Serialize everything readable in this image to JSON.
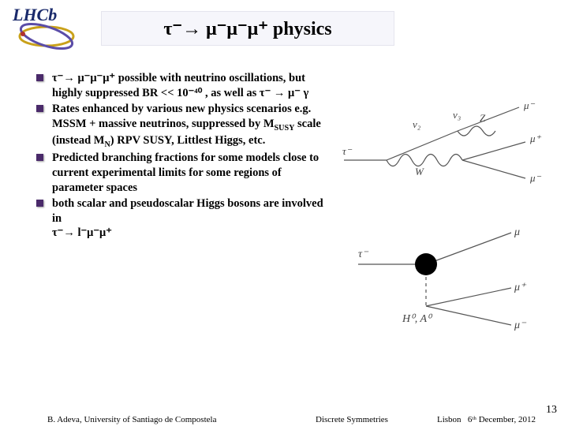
{
  "logo": {
    "top_text": "LHCb",
    "ring_color1": "#c9a11a",
    "ring_color2": "#5b4da8",
    "bg": "#ffffff",
    "top_color": "#1a2a6b"
  },
  "title": {
    "prefix": "τ⁻→ μ⁻μ⁻μ⁺ ",
    "suffix": "physics"
  },
  "bullets": [
    {
      "html": "τ⁻→ μ⁻μ⁻μ⁺  possible with neutrino oscillations, but highly suppressed BR &lt;&lt; 10⁻⁴⁰ , as well as  τ⁻ → μ⁻ γ"
    },
    {
      "html": "Rates enhanced by various new physics scenarios e.g.<br>MSSM + massive neutrinos, suppressed by M<sub>SUSY</sub>  scale (instead M<sub>N</sub>) RPV SUSY, Littlest Higgs, etc."
    },
    {
      "html": "Predicted branching fractions for some models close to current experimental limits for some regions of parameter spaces"
    },
    {
      "html": "both scalar and pseudoscalar Higgs bosons are involved  in<br>τ⁻→ l⁻μ⁻μ⁺"
    }
  ],
  "diagrams": {
    "d1_labels": {
      "tau": "τ⁻",
      "nu2": "ν₂",
      "nu3": "ν₃",
      "W": "W",
      "Z": "Z",
      "mu_minus": "μ⁻",
      "mu_plus": "μ⁺"
    },
    "d2_labels": {
      "tau": "τ⁻",
      "mu": "μ",
      "mu_plus": "μ⁺",
      "mu_minus": "μ⁻",
      "higgs": "H⁰, A⁰"
    }
  },
  "footer": {
    "left": "B. Adeva, University of  Santiago de Compostela",
    "mid": "Discrete  Symmetries",
    "right_city": "Lisbon",
    "right_date": "6ᵗʰ December, 2012",
    "page": "13"
  },
  "colors": {
    "bullet": "#4a2a6a",
    "line": "#555555"
  }
}
